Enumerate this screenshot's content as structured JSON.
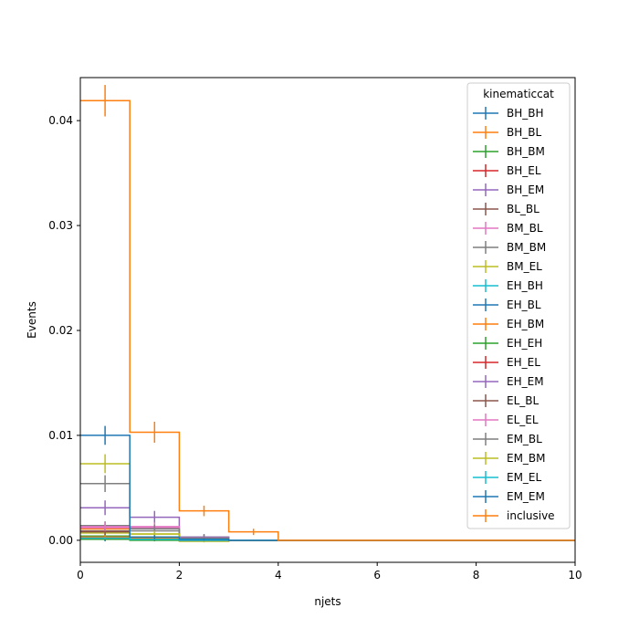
{
  "chart_data": {
    "type": "step",
    "xlabel": "njets",
    "ylabel": "Events",
    "xlim": [
      0,
      10
    ],
    "ylim": [
      -0.0021,
      0.0441
    ],
    "xticks": [
      0,
      2,
      4,
      6,
      8,
      10
    ],
    "yticks": [
      0.0,
      0.01,
      0.02,
      0.03,
      0.04
    ],
    "ytick_labels": [
      "0.00",
      "0.01",
      "0.02",
      "0.03",
      "0.04"
    ],
    "bin_edges": [
      0,
      1,
      2,
      3,
      4,
      5,
      6,
      7,
      8,
      9,
      10
    ],
    "legend": {
      "title": "kinematiccat",
      "placement": "upper right"
    },
    "series": [
      {
        "name": "BH_BH",
        "color": "#1f77b4",
        "values": [
          0.0001,
          0.0001,
          0,
          0,
          0,
          0,
          0,
          0,
          0,
          0
        ],
        "errors": [
          0.0002,
          0.0002,
          0,
          0,
          0,
          0,
          0,
          0,
          0,
          0
        ]
      },
      {
        "name": "BH_BL",
        "color": "#ff7f0e",
        "values": [
          0.0011,
          0.0002,
          0.0001,
          0,
          0,
          0,
          0,
          0,
          0,
          0
        ],
        "errors": [
          0.0003,
          0.0002,
          0.0001,
          0,
          0,
          0,
          0,
          0,
          0,
          0
        ]
      },
      {
        "name": "BH_BM",
        "color": "#2ca02c",
        "values": [
          0.0004,
          0.0003,
          0.0003,
          0,
          0,
          0,
          0,
          0,
          0,
          0
        ],
        "errors": [
          0.0002,
          0.0002,
          0.0002,
          0,
          0,
          0,
          0,
          0,
          0,
          0
        ]
      },
      {
        "name": "BH_EL",
        "color": "#d62728",
        "values": [
          0.0002,
          0.0001,
          0,
          0,
          0,
          0,
          0,
          0,
          0,
          0
        ],
        "errors": [
          0.0001,
          0.0001,
          0,
          0,
          0,
          0,
          0,
          0,
          0,
          0
        ]
      },
      {
        "name": "BH_EM",
        "color": "#9467bd",
        "values": [
          0.0003,
          0.0001,
          0.0001,
          0,
          0,
          0,
          0,
          0,
          0,
          0
        ],
        "errors": [
          0.0002,
          0.0001,
          0.0001,
          0,
          0,
          0,
          0,
          0,
          0,
          0
        ]
      },
      {
        "name": "BL_BL",
        "color": "#8c564b",
        "values": [
          0.0009,
          0.0002,
          0.0001,
          0,
          0,
          0,
          0,
          0,
          0,
          0
        ],
        "errors": [
          0.0003,
          0.0002,
          0.0001,
          0,
          0,
          0,
          0,
          0,
          0,
          0
        ]
      },
      {
        "name": "BM_BL",
        "color": "#e377c2",
        "values": [
          0.0012,
          0.0012,
          0.0002,
          0,
          0,
          0,
          0,
          0,
          0,
          0
        ],
        "errors": [
          0.0004,
          0.0004,
          0.0002,
          0,
          0,
          0,
          0,
          0,
          0,
          0
        ]
      },
      {
        "name": "BM_BM",
        "color": "#7f7f7f",
        "values": [
          0.0014,
          0.0009,
          0.0002,
          0,
          0,
          0,
          0,
          0,
          0,
          0
        ],
        "errors": [
          0.0004,
          0.0003,
          0.0002,
          0,
          0,
          0,
          0,
          0,
          0,
          0
        ]
      },
      {
        "name": "BM_EL",
        "color": "#bcbd22",
        "values": [
          0.0007,
          0.0006,
          -0.0001,
          0,
          0,
          0,
          0,
          0,
          0,
          0
        ],
        "errors": [
          0.0003,
          0.0003,
          0.0001,
          0,
          0,
          0,
          0,
          0,
          0,
          0
        ]
      },
      {
        "name": "EH_BH",
        "color": "#17becf",
        "values": [
          0.0001,
          0.0001,
          0,
          0,
          0,
          0,
          0,
          0,
          0,
          0
        ],
        "errors": [
          0.0001,
          0.0001,
          0,
          0,
          0,
          0,
          0,
          0,
          0,
          0
        ]
      },
      {
        "name": "EH_BL",
        "color": "#1f77b4",
        "values": [
          0.0002,
          0.0001,
          0.0001,
          0,
          0,
          0,
          0,
          0,
          0,
          0
        ],
        "errors": [
          0.0001,
          0.0001,
          0.0001,
          0,
          0,
          0,
          0,
          0,
          0,
          0
        ]
      },
      {
        "name": "EH_BM",
        "color": "#ff7f0e",
        "values": [
          0.0003,
          0.0002,
          0.0001,
          0,
          0,
          0,
          0,
          0,
          0,
          0
        ],
        "errors": [
          0.0002,
          0.0001,
          0.0001,
          0,
          0,
          0,
          0,
          0,
          0,
          0
        ]
      },
      {
        "name": "EH_EH",
        "color": "#2ca02c",
        "values": [
          0.0001,
          0,
          0,
          0,
          0,
          0,
          0,
          0,
          0,
          0
        ],
        "errors": [
          0.0001,
          0,
          0,
          0,
          0,
          0,
          0,
          0,
          0,
          0
        ]
      },
      {
        "name": "EH_EL",
        "color": "#d62728",
        "values": [
          0.0002,
          0.0001,
          0,
          0,
          0,
          0,
          0,
          0,
          0,
          0
        ],
        "errors": [
          0.0001,
          0.0001,
          0,
          0,
          0,
          0,
          0,
          0,
          0,
          0
        ]
      },
      {
        "name": "EH_EM",
        "color": "#9467bd",
        "values": [
          0.0031,
          0.0022,
          0.0003,
          0,
          0,
          0,
          0,
          0,
          0,
          0
        ],
        "errors": [
          0.0007,
          0.0006,
          0.0003,
          0,
          0,
          0,
          0,
          0,
          0,
          0
        ]
      },
      {
        "name": "EL_BL",
        "color": "#8c564b",
        "values": [
          0.0008,
          0.0001,
          0,
          0,
          0,
          0,
          0,
          0,
          0,
          0
        ],
        "errors": [
          0.0003,
          0.0001,
          0,
          0,
          0,
          0,
          0,
          0,
          0,
          0
        ]
      },
      {
        "name": "EL_EL",
        "color": "#e377c2",
        "values": [
          0.0013,
          0.0013,
          0.0002,
          0,
          0,
          0,
          0,
          0,
          0,
          0
        ],
        "errors": [
          0.0004,
          0.0004,
          0.0002,
          0,
          0,
          0,
          0,
          0,
          0,
          0
        ]
      },
      {
        "name": "EM_BL",
        "color": "#7f7f7f",
        "values": [
          0.0054,
          0.0011,
          0.0002,
          0,
          0,
          0,
          0,
          0,
          0,
          0
        ],
        "errors": [
          0.0008,
          0.0004,
          0.0002,
          0,
          0,
          0,
          0,
          0,
          0,
          0
        ]
      },
      {
        "name": "EM_BM",
        "color": "#bcbd22",
        "values": [
          0.0073,
          0.0006,
          0.0001,
          0,
          0,
          0,
          0,
          0,
          0,
          0
        ],
        "errors": [
          0.0009,
          0.0003,
          0.0001,
          0,
          0,
          0,
          0,
          0,
          0,
          0
        ]
      },
      {
        "name": "EM_EL",
        "color": "#17becf",
        "values": [
          0.0002,
          0.0001,
          0,
          0,
          0,
          0,
          0,
          0,
          0,
          0
        ],
        "errors": [
          0.0001,
          0.0001,
          0,
          0,
          0,
          0,
          0,
          0,
          0,
          0
        ]
      },
      {
        "name": "EM_EM",
        "color": "#1f77b4",
        "values": [
          0.01,
          0.0003,
          0.0001,
          0,
          0,
          0,
          0,
          0,
          0,
          0
        ],
        "errors": [
          0.0009,
          0.0002,
          0.0001,
          0,
          0,
          0,
          0,
          0,
          0,
          0
        ]
      },
      {
        "name": "inclusive",
        "color": "#ff7f0e",
        "values": [
          0.0419,
          0.0103,
          0.0028,
          0.0008,
          0,
          0,
          0,
          0,
          0,
          0
        ],
        "errors": [
          0.0015,
          0.001,
          0.0005,
          0.0003,
          0,
          0,
          0,
          0,
          0,
          0
        ]
      }
    ]
  }
}
